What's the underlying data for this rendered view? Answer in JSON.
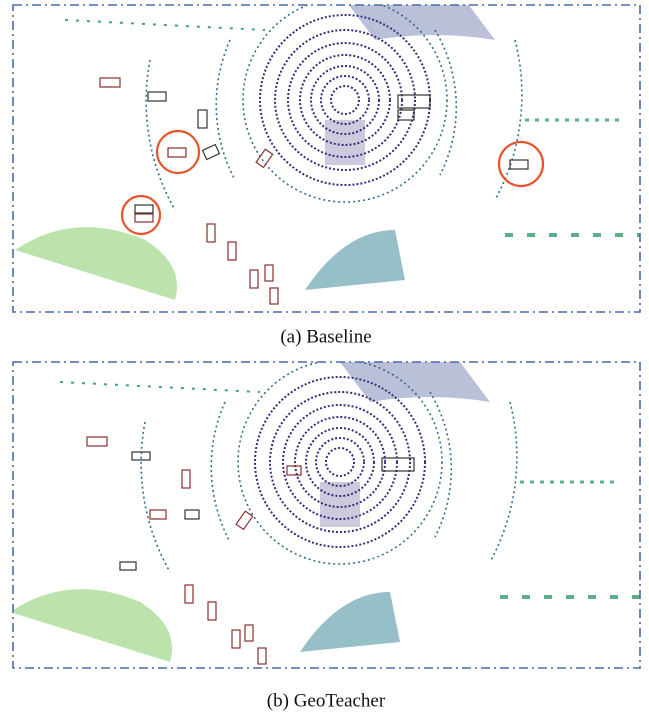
{
  "panels": [
    {
      "caption": "(a) Baseline"
    },
    {
      "caption": "(b) GeoTeacher"
    }
  ]
}
